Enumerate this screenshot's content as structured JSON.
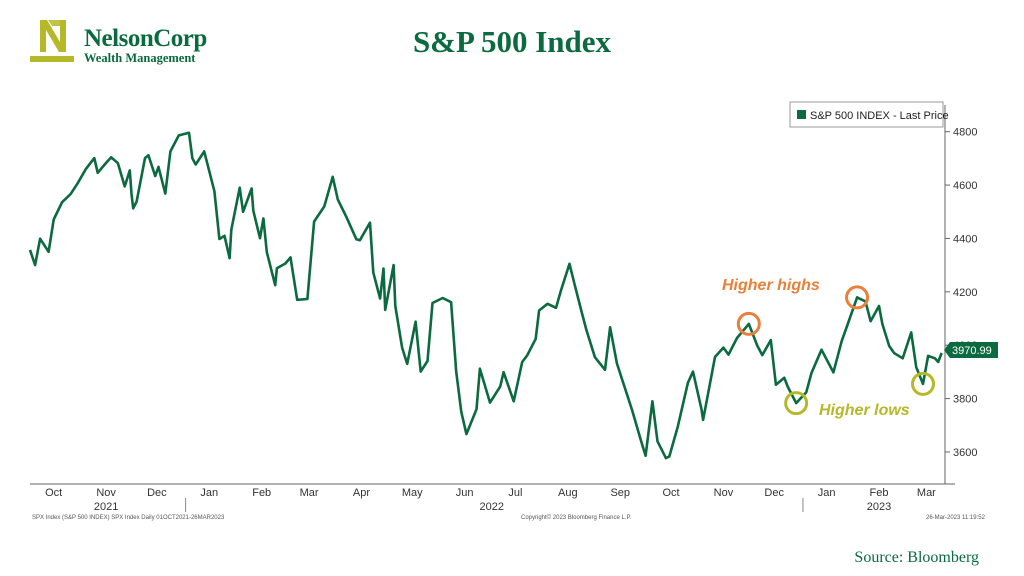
{
  "logo": {
    "name": "NelsonCorp",
    "subtitle": "Wealth Management",
    "icon": "nelsoncorp-n-logo"
  },
  "title": "S&P 500 Index",
  "source": "Source:  Bloomberg",
  "colors": {
    "line": "#0b6a3f",
    "title": "#0b6a3f",
    "highs": "#e8803a",
    "lows": "#b5b928",
    "logo": "#b5b928"
  },
  "chart_data": {
    "type": "line",
    "title": "",
    "xlabel": "",
    "ylabel": "",
    "ylim": [
      3480,
      4900
    ],
    "yticks": [
      3600,
      3800,
      4000,
      4200,
      4400,
      4600,
      4800
    ],
    "grid": false,
    "legend": {
      "label": "S&P 500 INDEX - Last Price",
      "position": "top-right"
    },
    "last_price": "3970.99",
    "x_range": [
      "2021-10-01",
      "2023-03-26"
    ],
    "months": [
      {
        "label": "Oct",
        "date": "2021-10-15"
      },
      {
        "label": "Nov",
        "date": "2021-11-15"
      },
      {
        "label": "Dec",
        "date": "2021-12-15"
      },
      {
        "label": "Jan",
        "date": "2022-01-15"
      },
      {
        "label": "Feb",
        "date": "2022-02-15"
      },
      {
        "label": "Mar",
        "date": "2022-03-15"
      },
      {
        "label": "Apr",
        "date": "2022-04-15"
      },
      {
        "label": "May",
        "date": "2022-05-15"
      },
      {
        "label": "Jun",
        "date": "2022-06-15"
      },
      {
        "label": "Jul",
        "date": "2022-07-15"
      },
      {
        "label": "Aug",
        "date": "2022-08-15"
      },
      {
        "label": "Sep",
        "date": "2022-09-15"
      },
      {
        "label": "Oct",
        "date": "2022-10-15"
      },
      {
        "label": "Nov",
        "date": "2022-11-15"
      },
      {
        "label": "Dec",
        "date": "2022-12-15"
      },
      {
        "label": "Jan",
        "date": "2023-01-15"
      },
      {
        "label": "Feb",
        "date": "2023-02-15"
      },
      {
        "label": "Mar",
        "date": "2023-03-15"
      }
    ],
    "years": [
      {
        "label": "2021",
        "date": "2021-11-15"
      },
      {
        "label": "2022",
        "date": "2022-07-01"
      },
      {
        "label": "2023",
        "date": "2023-02-15"
      }
    ],
    "series": [
      {
        "values": [
          [
            "2021-10-01",
            4357
          ],
          [
            "2021-10-04",
            4300
          ],
          [
            "2021-10-07",
            4399
          ],
          [
            "2021-10-12",
            4350
          ],
          [
            "2021-10-15",
            4471
          ],
          [
            "2021-10-20",
            4536
          ],
          [
            "2021-10-25",
            4566
          ],
          [
            "2021-10-29",
            4605
          ],
          [
            "2021-11-03",
            4660
          ],
          [
            "2021-11-08",
            4701
          ],
          [
            "2021-11-10",
            4646
          ],
          [
            "2021-11-15",
            4683
          ],
          [
            "2021-11-18",
            4704
          ],
          [
            "2021-11-22",
            4682
          ],
          [
            "2021-11-26",
            4595
          ],
          [
            "2021-11-29",
            4655
          ],
          [
            "2021-11-30",
            4567
          ],
          [
            "2021-12-01",
            4513
          ],
          [
            "2021-12-03",
            4538
          ],
          [
            "2021-12-08",
            4701
          ],
          [
            "2021-12-10",
            4712
          ],
          [
            "2021-12-14",
            4634
          ],
          [
            "2021-12-16",
            4668
          ],
          [
            "2021-12-20",
            4568
          ],
          [
            "2021-12-23",
            4726
          ],
          [
            "2021-12-28",
            4786
          ],
          [
            "2022-01-03",
            4796
          ],
          [
            "2022-01-05",
            4700
          ],
          [
            "2022-01-07",
            4677
          ],
          [
            "2022-01-12",
            4726
          ],
          [
            "2022-01-18",
            4577
          ],
          [
            "2022-01-21",
            4398
          ],
          [
            "2022-01-24",
            4410
          ],
          [
            "2022-01-27",
            4326
          ],
          [
            "2022-01-28",
            4432
          ],
          [
            "2022-02-02",
            4590
          ],
          [
            "2022-02-04",
            4500
          ],
          [
            "2022-02-09",
            4587
          ],
          [
            "2022-02-10",
            4504
          ],
          [
            "2022-02-14",
            4401
          ],
          [
            "2022-02-16",
            4475
          ],
          [
            "2022-02-18",
            4349
          ],
          [
            "2022-02-23",
            4225
          ],
          [
            "2022-02-24",
            4288
          ],
          [
            "2022-03-01",
            4306
          ],
          [
            "2022-03-04",
            4329
          ],
          [
            "2022-03-08",
            4170
          ],
          [
            "2022-03-14",
            4173
          ],
          [
            "2022-03-18",
            4463
          ],
          [
            "2022-03-24",
            4520
          ],
          [
            "2022-03-29",
            4631
          ],
          [
            "2022-04-01",
            4546
          ],
          [
            "2022-04-06",
            4481
          ],
          [
            "2022-04-12",
            4397
          ],
          [
            "2022-04-14",
            4393
          ],
          [
            "2022-04-20",
            4459
          ],
          [
            "2022-04-22",
            4272
          ],
          [
            "2022-04-26",
            4175
          ],
          [
            "2022-04-28",
            4287
          ],
          [
            "2022-04-29",
            4132
          ],
          [
            "2022-05-04",
            4300
          ],
          [
            "2022-05-05",
            4147
          ],
          [
            "2022-05-09",
            3991
          ],
          [
            "2022-05-12",
            3930
          ],
          [
            "2022-05-17",
            4088
          ],
          [
            "2022-05-20",
            3901
          ],
          [
            "2022-05-24",
            3941
          ],
          [
            "2022-05-27",
            4158
          ],
          [
            "2022-06-02",
            4177
          ],
          [
            "2022-06-07",
            4161
          ],
          [
            "2022-06-10",
            3901
          ],
          [
            "2022-06-13",
            3750
          ],
          [
            "2022-06-16",
            3667
          ],
          [
            "2022-06-22",
            3760
          ],
          [
            "2022-06-24",
            3912
          ],
          [
            "2022-06-30",
            3785
          ],
          [
            "2022-07-06",
            3845
          ],
          [
            "2022-07-08",
            3899
          ],
          [
            "2022-07-14",
            3790
          ],
          [
            "2022-07-19",
            3937
          ],
          [
            "2022-07-22",
            3962
          ],
          [
            "2022-07-27",
            4024
          ],
          [
            "2022-07-29",
            4130
          ],
          [
            "2022-08-03",
            4155
          ],
          [
            "2022-08-08",
            4140
          ],
          [
            "2022-08-11",
            4207
          ],
          [
            "2022-08-16",
            4305
          ],
          [
            "2022-08-19",
            4228
          ],
          [
            "2022-08-23",
            4128
          ],
          [
            "2022-08-26",
            4057
          ],
          [
            "2022-08-31",
            3955
          ],
          [
            "2022-09-06",
            3908
          ],
          [
            "2022-09-09",
            4067
          ],
          [
            "2022-09-13",
            3932
          ],
          [
            "2022-09-16",
            3873
          ],
          [
            "2022-09-22",
            3757
          ],
          [
            "2022-09-27",
            3647
          ],
          [
            "2022-09-30",
            3586
          ],
          [
            "2022-10-04",
            3790
          ],
          [
            "2022-10-07",
            3640
          ],
          [
            "2022-10-12",
            3577
          ],
          [
            "2022-10-14",
            3583
          ],
          [
            "2022-10-19",
            3695
          ],
          [
            "2022-10-25",
            3859
          ],
          [
            "2022-10-28",
            3901
          ],
          [
            "2022-11-02",
            3760
          ],
          [
            "2022-11-03",
            3720
          ],
          [
            "2022-11-10",
            3956
          ],
          [
            "2022-11-15",
            3991
          ],
          [
            "2022-11-18",
            3965
          ],
          [
            "2022-11-23",
            4027
          ],
          [
            "2022-11-30",
            4080
          ],
          [
            "2022-12-05",
            3998
          ],
          [
            "2022-12-08",
            3963
          ],
          [
            "2022-12-13",
            4019
          ],
          [
            "2022-12-16",
            3852
          ],
          [
            "2022-12-21",
            3878
          ],
          [
            "2022-12-23",
            3845
          ],
          [
            "2022-12-28",
            3783
          ],
          [
            "2023-01-03",
            3824
          ],
          [
            "2023-01-06",
            3895
          ],
          [
            "2023-01-12",
            3983
          ],
          [
            "2023-01-19",
            3898
          ],
          [
            "2023-01-24",
            4017
          ],
          [
            "2023-01-27",
            4070
          ],
          [
            "2023-02-02",
            4179
          ],
          [
            "2023-02-07",
            4164
          ],
          [
            "2023-02-10",
            4090
          ],
          [
            "2023-02-15",
            4147
          ],
          [
            "2023-02-17",
            4079
          ],
          [
            "2023-02-21",
            3997
          ],
          [
            "2023-02-24",
            3970
          ],
          [
            "2023-03-01",
            3951
          ],
          [
            "2023-03-06",
            4048
          ],
          [
            "2023-03-09",
            3918
          ],
          [
            "2023-03-13",
            3855
          ],
          [
            "2023-03-16",
            3960
          ],
          [
            "2023-03-20",
            3951
          ],
          [
            "2023-03-22",
            3937
          ],
          [
            "2023-03-24",
            3970.99
          ]
        ]
      }
    ],
    "annotations": [
      {
        "text": "Higher highs",
        "color": "highs"
      },
      {
        "text": "Higher lows",
        "color": "lows"
      }
    ],
    "markers": [
      {
        "kind": "higher-high",
        "date": "2022-11-30",
        "value": 4080
      },
      {
        "kind": "higher-high",
        "date": "2023-02-02",
        "value": 4179
      },
      {
        "kind": "higher-low",
        "date": "2022-12-28",
        "value": 3783
      },
      {
        "kind": "higher-low",
        "date": "2023-03-13",
        "value": 3855
      }
    ],
    "footer": {
      "left": "SPX Index (S&P 500 INDEX) SPX Index  Daily 01OCT2021-26MAR2023",
      "center": "Copyright© 2023 Bloomberg Finance L.P.",
      "right": "26-Mar-2023 11:19:52"
    }
  }
}
